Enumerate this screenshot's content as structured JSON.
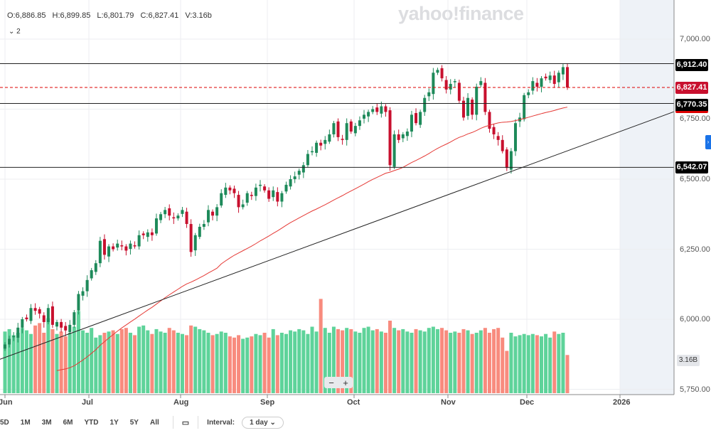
{
  "watermark": "yahoo!finance",
  "ohlc": {
    "open": "O:6,886.85",
    "high": "H:6,899.85",
    "low": "L:6,801.79",
    "close": "C:6,827.41",
    "volume": "V:3.16b"
  },
  "indicator_toggle": "2",
  "price_labels": {
    "resistance": "6,912.40",
    "last": "6,827.41",
    "support1": "6,770.35",
    "support2": "6,542.07"
  },
  "volume_label": "3.16B",
  "toolbar": {
    "ranges": [
      "5D",
      "1M",
      "3M",
      "6M",
      "YTD",
      "1Y",
      "5Y",
      "All"
    ],
    "interval_label": "Interval:",
    "interval_value": "1 day"
  },
  "zoom": {
    "minus": "−",
    "plus": "+"
  },
  "colors": {
    "up": "#1e8a5a",
    "down": "#c8102e",
    "vol_up": "#5ed39a",
    "vol_down": "#f88b7e",
    "ma": "#e53935",
    "future_shade": "#eef2f7"
  },
  "chart_data": {
    "type": "candlestick",
    "ylim": [
      5750,
      7100
    ],
    "y_ticks": [
      "7,000.00",
      "6,750.00",
      "6,500.00",
      "6,250.00",
      "6,000.00",
      "5,750.00"
    ],
    "y_tick_values": [
      7000,
      6750,
      6500,
      6250,
      6000,
      5750
    ],
    "x_ticks": [
      "Jun",
      "Jul",
      "Aug",
      "Sep",
      "Oct",
      "Nov",
      "Dec",
      "2026"
    ],
    "grid": true,
    "horizontal_lines": [
      6912.4,
      6770.35,
      6542.07
    ],
    "last_price_line": 6827.41,
    "trendline": {
      "start": 5857,
      "end": 6741
    },
    "close": [
      5910,
      5930,
      5940,
      5970,
      6000,
      6000,
      6040,
      6030,
      6020,
      5990,
      6040,
      5980,
      5990,
      5970,
      5960,
      5980,
      6025,
      6090,
      6100,
      6140,
      6175,
      6200,
      6280,
      6230,
      6260,
      6250,
      6270,
      6260,
      6245,
      6270,
      6260,
      6300,
      6300,
      6310,
      6300,
      6360,
      6375,
      6390,
      6370,
      6360,
      6370,
      6390,
      6340,
      6240,
      6300,
      6330,
      6340,
      6390,
      6370,
      6400,
      6450,
      6470,
      6460,
      6450,
      6400,
      6410,
      6450,
      6440,
      6470,
      6480,
      6460,
      6430,
      6460,
      6420,
      6450,
      6480,
      6500,
      6510,
      6530,
      6550,
      6590,
      6600,
      6630,
      6620,
      6640,
      6660,
      6700,
      6650,
      6640,
      6700,
      6670,
      6690,
      6710,
      6730,
      6740,
      6750,
      6740,
      6760,
      6740,
      6550,
      6660,
      6640,
      6660,
      6670,
      6730,
      6700,
      6740,
      6790,
      6810,
      6880,
      6890,
      6860,
      6820,
      6840,
      6850,
      6780,
      6720,
      6790,
      6730,
      6830,
      6850,
      6740,
      6680,
      6660,
      6640,
      6600,
      6540,
      6600,
      6700,
      6720,
      6800,
      6810,
      6850,
      6830,
      6860,
      6860,
      6870,
      6840,
      6880,
      6900,
      6827
    ],
    "volume_b": [
      5.1,
      5.3,
      4.8,
      5.0,
      5.4,
      5.2,
      4.9,
      5.6,
      5.8,
      5.0,
      6.2,
      5.3,
      4.9,
      5.1,
      4.7,
      5.0,
      5.5,
      6.8,
      5.2,
      5.0,
      5.4,
      4.6,
      4.8,
      5.0,
      5.1,
      5.2,
      4.9,
      5.3,
      5.4,
      5.0,
      4.8,
      5.5,
      5.6,
      5.2,
      4.9,
      5.3,
      5.1,
      5.0,
      5.4,
      5.2,
      5.0,
      4.9,
      4.8,
      5.6,
      5.5,
      5.3,
      5.2,
      5.0,
      4.8,
      4.9,
      5.1,
      5.0,
      4.7,
      4.6,
      4.8,
      4.5,
      4.6,
      4.7,
      4.9,
      4.8,
      5.0,
      4.6,
      5.3,
      4.8,
      5.0,
      4.9,
      5.2,
      5.1,
      5.3,
      5.2,
      4.9,
      5.5,
      5.1,
      7.8,
      5.4,
      5.0,
      5.5,
      5.3,
      5.2,
      5.4,
      5.3,
      5.1,
      5.0,
      5.4,
      5.5,
      5.2,
      5.3,
      5.1,
      5.0,
      6.0,
      5.4,
      5.2,
      5.3,
      5.1,
      5.0,
      5.3,
      5.2,
      5.1,
      5.4,
      5.5,
      5.3,
      5.4,
      5.2,
      5.0,
      5.1,
      5.0,
      5.3,
      5.2,
      4.9,
      5.0,
      5.2,
      5.4,
      5.0,
      5.3,
      5.4,
      4.6,
      3.5,
      5.0,
      4.7,
      4.8,
      4.9,
      4.8,
      4.9,
      4.8,
      4.7,
      4.9,
      4.6,
      5.1,
      4.9,
      5.0,
      3.16
    ]
  }
}
